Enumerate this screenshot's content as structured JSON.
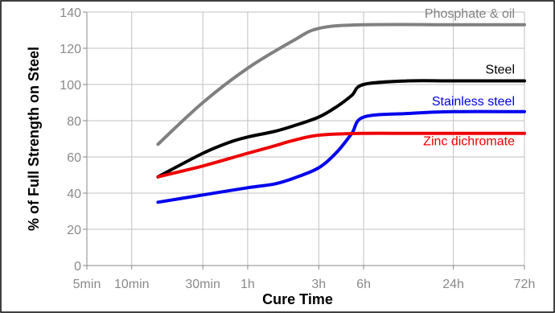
{
  "chart_data": {
    "type": "line",
    "title": "",
    "xlabel": "Cure Time",
    "ylabel": "% of Full Strength on Steel",
    "ylim": [
      0,
      140
    ],
    "yticks": [
      0,
      20,
      40,
      60,
      80,
      100,
      120,
      140
    ],
    "x_scale": "log",
    "xticks": [
      "5min",
      "10min",
      "30min",
      "1h",
      "3h",
      "6h",
      "24h",
      "72h"
    ],
    "xtick_minutes": [
      5,
      10,
      30,
      60,
      180,
      360,
      1440,
      4320
    ],
    "grid": true,
    "legend": "inline labels next to each line",
    "series": [
      {
        "name": "Phosphate & oil",
        "color": "#808080",
        "x_minutes": [
          15,
          30,
          60,
          120,
          180,
          360,
          1440,
          4320
        ],
        "values": [
          67,
          90,
          109,
          124,
          131,
          133,
          133,
          133
        ]
      },
      {
        "name": "Steel",
        "color": "#000000",
        "x_minutes": [
          15,
          30,
          45,
          60,
          90,
          120,
          180,
          240,
          300,
          360,
          720,
          1440,
          4320
        ],
        "values": [
          49,
          62,
          68,
          71,
          74,
          77,
          82,
          88,
          94,
          100,
          102,
          102,
          102
        ]
      },
      {
        "name": "Stainless steel",
        "color": "#0000ee",
        "x_minutes": [
          15,
          30,
          60,
          90,
          120,
          180,
          240,
          300,
          360,
          720,
          1440,
          4320
        ],
        "values": [
          35,
          39,
          43,
          45,
          48,
          54,
          63,
          73,
          82,
          84,
          85,
          85
        ]
      },
      {
        "name": "Zinc dichromate",
        "color": "#ee0000",
        "x_minutes": [
          15,
          30,
          60,
          90,
          120,
          180,
          360,
          720,
          1440,
          4320
        ],
        "values": [
          49,
          55,
          62,
          66,
          69,
          72,
          73,
          73,
          73,
          73
        ]
      }
    ]
  }
}
